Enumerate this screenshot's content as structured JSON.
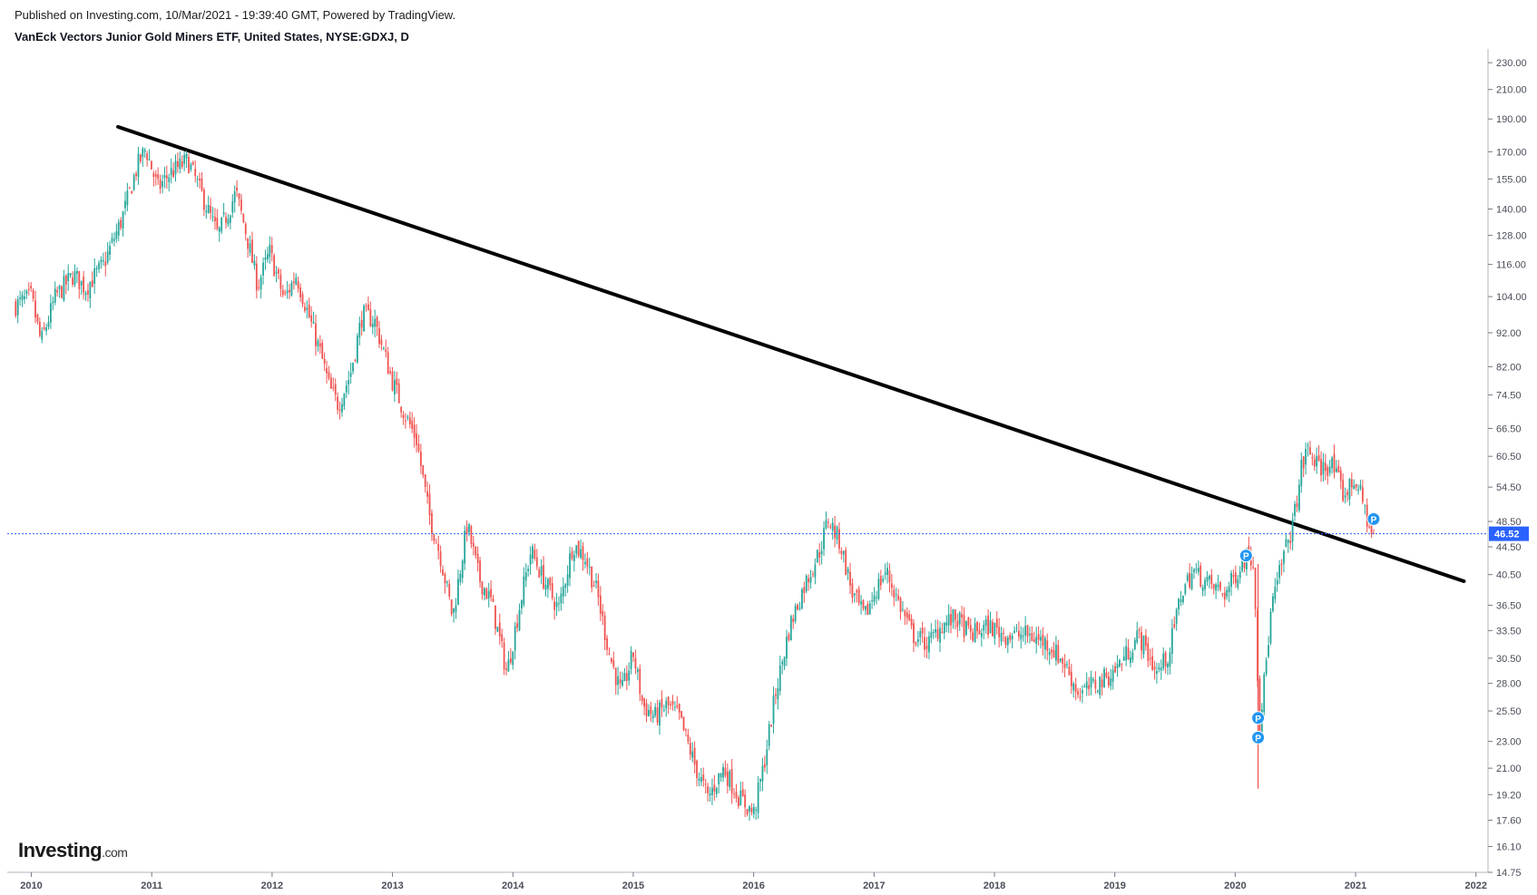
{
  "header": {
    "published": "Published on Investing.com, 10/Mar/2021 - 19:39:40 GMT, Powered by TradingView.",
    "instrument": "VanEck Vectors Junior Gold Miners ETF, United States, NYSE:GDXJ, D"
  },
  "logo": {
    "brand": "Investing",
    "suffix": ".com"
  },
  "chart_data": {
    "type": "candlestick",
    "scale": "log",
    "ylim": [
      14.75,
      238
    ],
    "xlim": [
      2009.8,
      2022.1
    ],
    "y_ticks": [
      "230.00",
      "210.00",
      "190.00",
      "170.00",
      "155.00",
      "140.00",
      "128.00",
      "116.00",
      "104.00",
      "92.00",
      "82.00",
      "74.50",
      "66.50",
      "60.50",
      "54.50",
      "48.50",
      "44.50",
      "40.50",
      "36.50",
      "33.50",
      "30.50",
      "28.00",
      "25.50",
      "23.00",
      "21.00",
      "19.20",
      "17.60",
      "16.10",
      "14.75"
    ],
    "x_ticks": [
      "2010",
      "2011",
      "2012",
      "2013",
      "2014",
      "2015",
      "2016",
      "2017",
      "2018",
      "2019",
      "2020",
      "2021",
      "2022"
    ],
    "price_path": [
      [
        2009.87,
        101
      ],
      [
        2010.0,
        104
      ],
      [
        2010.08,
        89
      ],
      [
        2010.2,
        104
      ],
      [
        2010.35,
        112
      ],
      [
        2010.45,
        107
      ],
      [
        2010.6,
        116
      ],
      [
        2010.75,
        135
      ],
      [
        2010.88,
        162
      ],
      [
        2010.95,
        172
      ],
      [
        2011.05,
        150
      ],
      [
        2011.15,
        158
      ],
      [
        2011.3,
        165
      ],
      [
        2011.45,
        142
      ],
      [
        2011.55,
        128
      ],
      [
        2011.7,
        148
      ],
      [
        2011.78,
        130
      ],
      [
        2011.88,
        108
      ],
      [
        2011.98,
        121
      ],
      [
        2012.1,
        103
      ],
      [
        2012.2,
        112
      ],
      [
        2012.3,
        98
      ],
      [
        2012.4,
        86
      ],
      [
        2012.48,
        76
      ],
      [
        2012.55,
        72
      ],
      [
        2012.65,
        80
      ],
      [
        2012.75,
        98
      ],
      [
        2012.85,
        96
      ],
      [
        2013.0,
        78
      ],
      [
        2013.1,
        70
      ],
      [
        2013.2,
        64
      ],
      [
        2013.3,
        50
      ],
      [
        2013.4,
        43
      ],
      [
        2013.5,
        35
      ],
      [
        2013.62,
        48
      ],
      [
        2013.72,
        40
      ],
      [
        2013.82,
        37
      ],
      [
        2013.95,
        29
      ],
      [
        2014.05,
        36
      ],
      [
        2014.15,
        44
      ],
      [
        2014.25,
        40
      ],
      [
        2014.38,
        36
      ],
      [
        2014.5,
        45
      ],
      [
        2014.6,
        43
      ],
      [
        2014.7,
        38
      ],
      [
        2014.8,
        31
      ],
      [
        2014.9,
        27
      ],
      [
        2015.0,
        31
      ],
      [
        2015.08,
        26
      ],
      [
        2015.18,
        25
      ],
      [
        2015.28,
        26
      ],
      [
        2015.38,
        25
      ],
      [
        2015.52,
        21
      ],
      [
        2015.62,
        19
      ],
      [
        2015.75,
        21
      ],
      [
        2015.88,
        19
      ],
      [
        2016.0,
        18
      ],
      [
        2016.08,
        21
      ],
      [
        2016.18,
        27
      ],
      [
        2016.3,
        34
      ],
      [
        2016.42,
        39
      ],
      [
        2016.55,
        44
      ],
      [
        2016.62,
        49
      ],
      [
        2016.72,
        45
      ],
      [
        2016.82,
        38
      ],
      [
        2016.92,
        35
      ],
      [
        2017.0,
        38
      ],
      [
        2017.1,
        41
      ],
      [
        2017.2,
        37
      ],
      [
        2017.32,
        33
      ],
      [
        2017.45,
        32
      ],
      [
        2017.55,
        34
      ],
      [
        2017.68,
        35
      ],
      [
        2017.8,
        33
      ],
      [
        2017.95,
        34
      ],
      [
        2018.1,
        33
      ],
      [
        2018.28,
        33
      ],
      [
        2018.45,
        32
      ],
      [
        2018.58,
        30
      ],
      [
        2018.7,
        27
      ],
      [
        2018.85,
        28
      ],
      [
        2018.98,
        29
      ],
      [
        2019.1,
        31
      ],
      [
        2019.2,
        33
      ],
      [
        2019.35,
        29
      ],
      [
        2019.45,
        31
      ],
      [
        2019.55,
        38
      ],
      [
        2019.65,
        41
      ],
      [
        2019.8,
        39
      ],
      [
        2019.92,
        38
      ],
      [
        2020.05,
        42
      ],
      [
        2020.12,
        44
      ],
      [
        2020.16,
        41
      ],
      [
        2020.2,
        24
      ],
      [
        2020.24,
        28
      ],
      [
        2020.3,
        36
      ],
      [
        2020.4,
        43
      ],
      [
        2020.48,
        48
      ],
      [
        2020.55,
        58
      ],
      [
        2020.6,
        62
      ],
      [
        2020.7,
        58
      ],
      [
        2020.8,
        59
      ],
      [
        2020.9,
        53
      ],
      [
        2021.0,
        56
      ],
      [
        2021.07,
        51
      ],
      [
        2021.12,
        47
      ],
      [
        2021.15,
        46
      ]
    ],
    "trendline": {
      "from": [
        2010.72,
        185
      ],
      "to": [
        2021.9,
        39.6
      ]
    },
    "last_price": {
      "value": 46.52,
      "label": "46.52"
    },
    "markers": [
      {
        "label": "P",
        "x": 2020.09,
        "y": 43.2
      },
      {
        "label": "P",
        "x": 2020.19,
        "y": 24.9
      },
      {
        "label": "P",
        "x": 2020.19,
        "y": 23.3
      },
      {
        "label": "P",
        "x": 2021.15,
        "y": 48.9
      }
    ],
    "colors": {
      "up": "#26a69a",
      "down": "#ef5350",
      "trendline": "#000000",
      "last_price": "#2962ff",
      "marker": "#2196f3",
      "axis": "#787b86"
    }
  }
}
